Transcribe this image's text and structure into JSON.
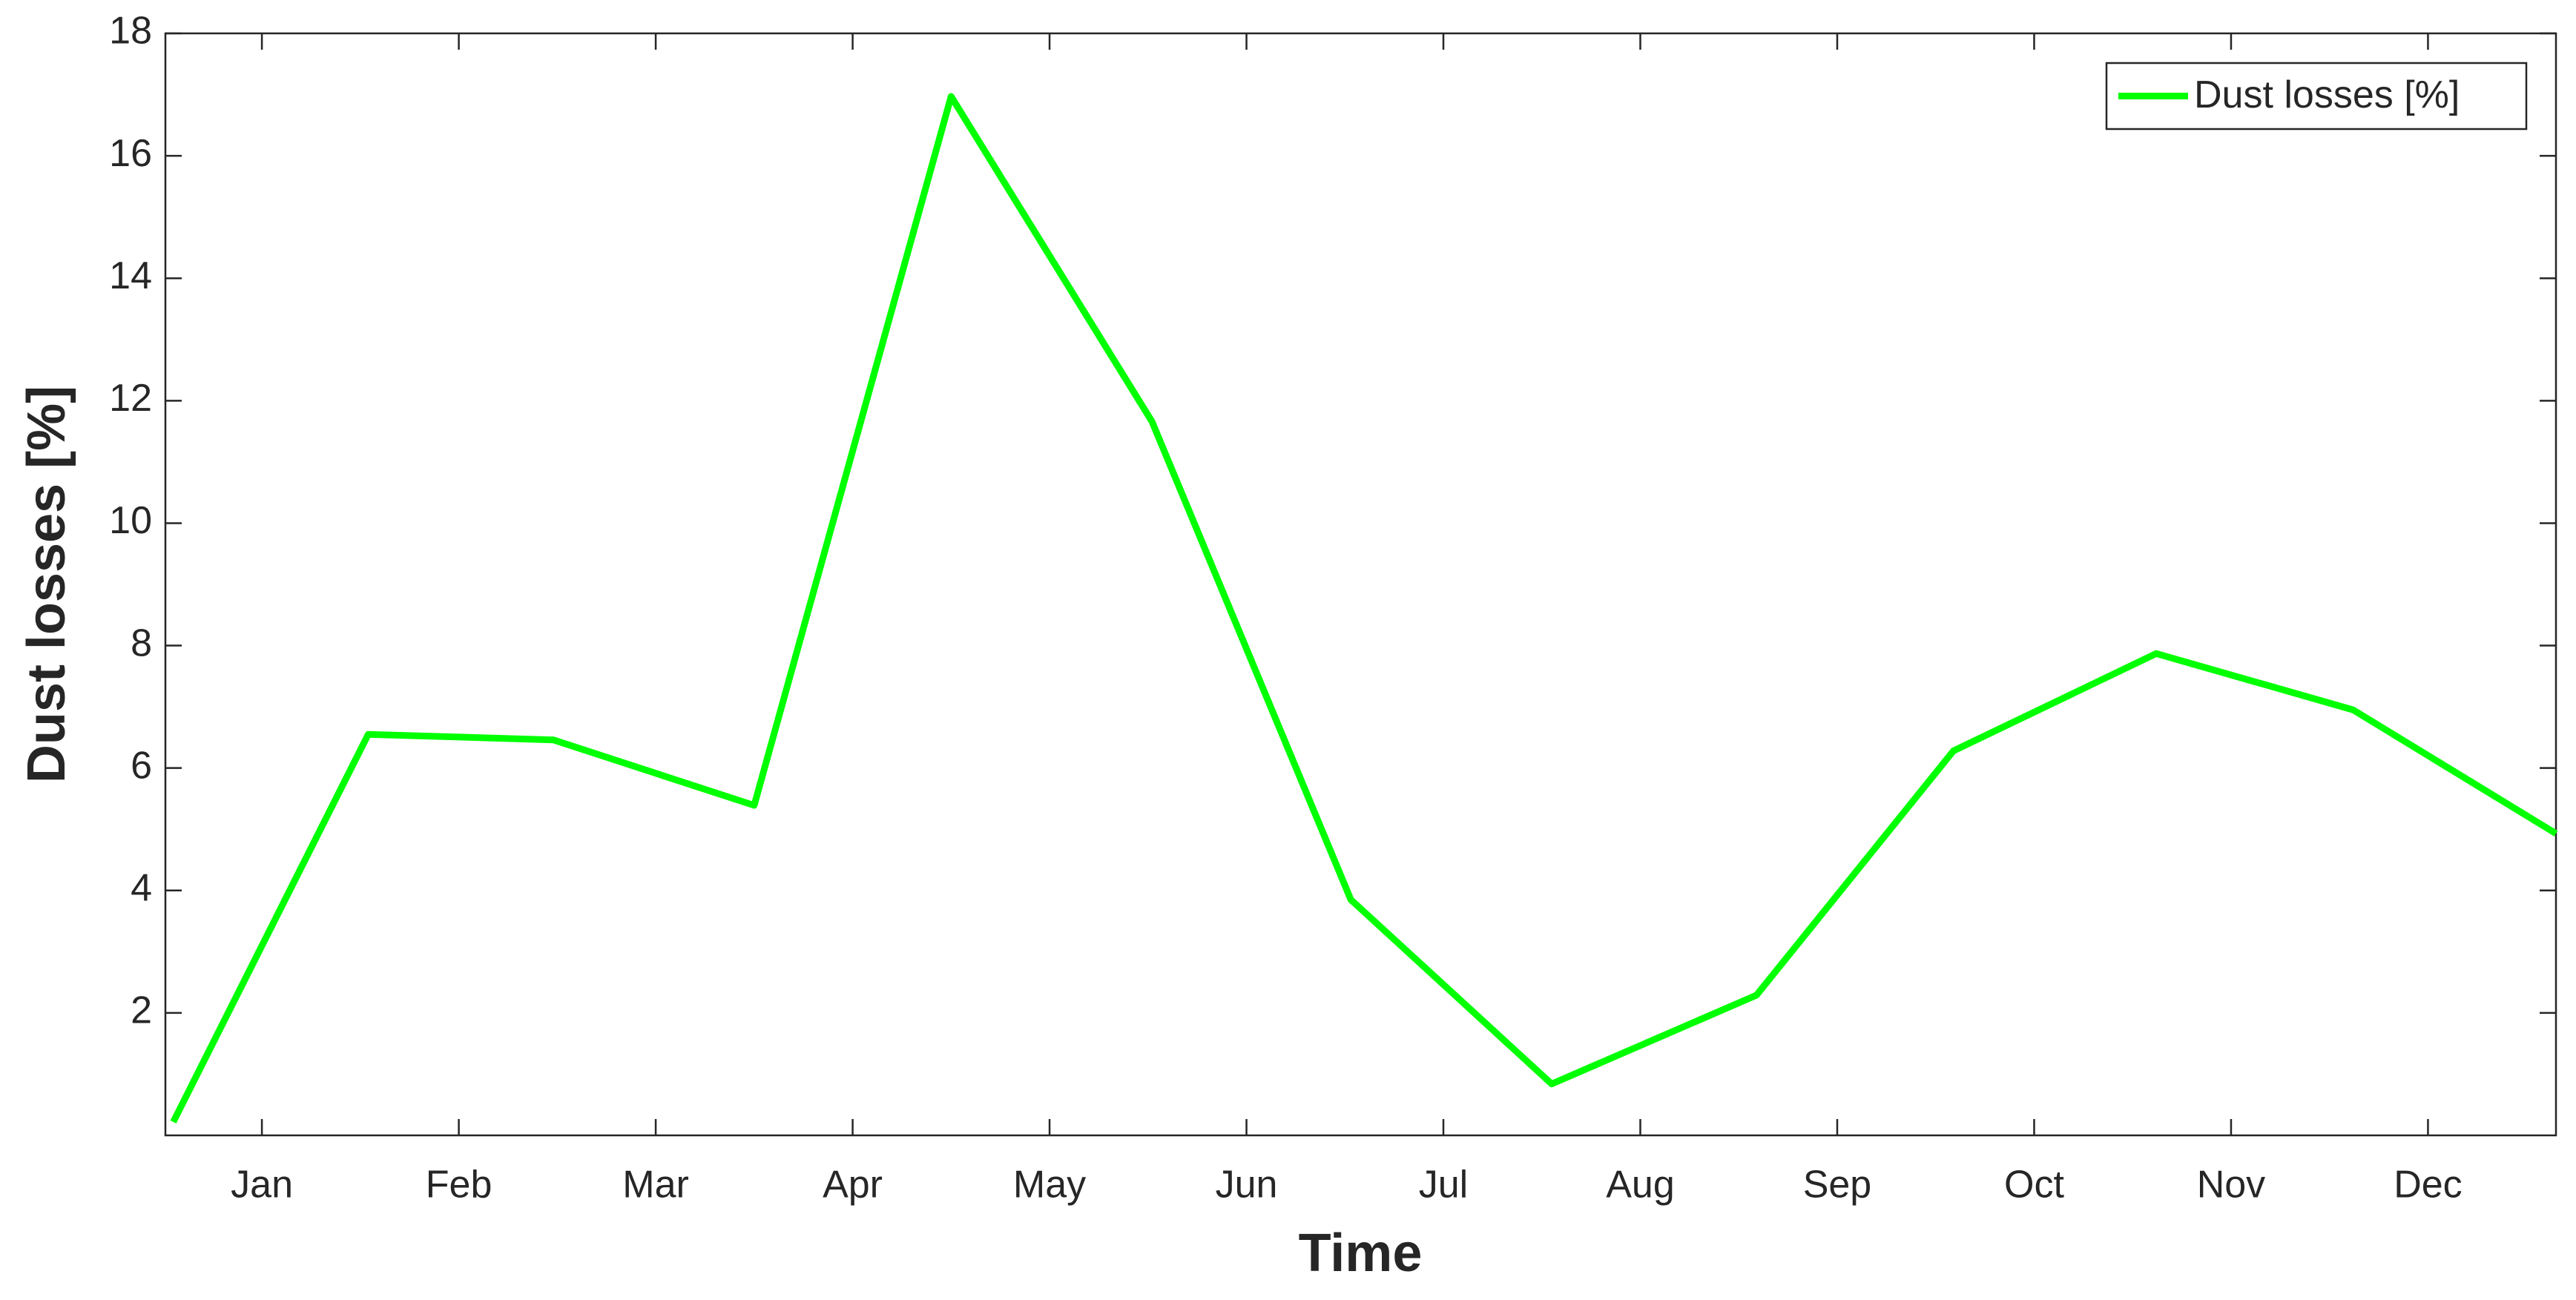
{
  "chart_data": {
    "type": "line",
    "x_label": "Time",
    "y_label": "Dust losses [%]",
    "x": [
      0.55,
      1.54,
      2.48,
      3.5,
      4.5,
      5.52,
      6.53,
      7.55,
      8.59,
      9.59,
      10.62,
      11.62,
      12.65
    ],
    "series": [
      {
        "name": "Dust losses [%]",
        "color": "#00ff00",
        "values": [
          0.22,
          6.55,
          6.46,
          5.39,
          16.97,
          11.66,
          3.85,
          0.84,
          2.29,
          6.28,
          7.87,
          6.95,
          4.93
        ]
      }
    ],
    "xlim": [
      0.51,
      12.65
    ],
    "xticks": [
      {
        "value": 1,
        "label": "Jan"
      },
      {
        "value": 2,
        "label": "Feb"
      },
      {
        "value": 3,
        "label": "Mar"
      },
      {
        "value": 4,
        "label": "Apr"
      },
      {
        "value": 5,
        "label": "May"
      },
      {
        "value": 6,
        "label": "Jun"
      },
      {
        "value": 7,
        "label": "Jul"
      },
      {
        "value": 8,
        "label": "Aug"
      },
      {
        "value": 9,
        "label": "Sep"
      },
      {
        "value": 10,
        "label": "Oct"
      },
      {
        "value": 11,
        "label": "Nov"
      },
      {
        "value": 12,
        "label": "Dec"
      }
    ],
    "ylim": [
      0,
      18
    ],
    "yticks": [
      2,
      4,
      6,
      8,
      10,
      12,
      14,
      16,
      18
    ],
    "legend": "top-right"
  }
}
